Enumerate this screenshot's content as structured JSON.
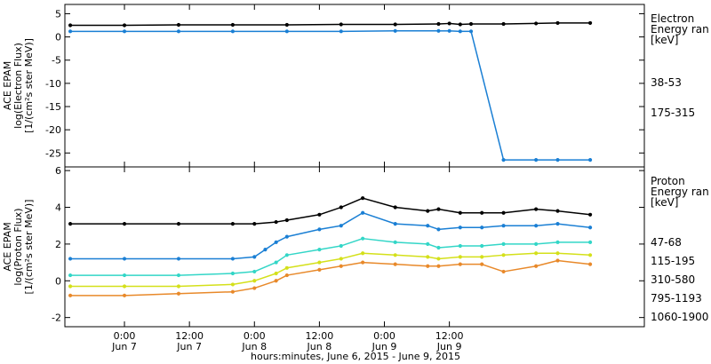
{
  "chart_data": [
    {
      "type": "scatter",
      "panel": "electron",
      "ylabel": [
        "ACE EPAM",
        "log(Electron Flux)",
        "[1/(cm²s ster MeV)]"
      ],
      "ylim": [
        -28,
        7
      ],
      "yticks": [
        5,
        0,
        -5,
        -10,
        -15,
        -20,
        -25
      ],
      "legend": {
        "title": [
          "Electron",
          "Energy ran",
          "[keV]"
        ],
        "placement": "right",
        "entries": [
          "38-53",
          "175-315"
        ]
      },
      "series": [
        {
          "name": "38-53",
          "color": "#000000",
          "x": [
            -10,
            0,
            10,
            20,
            30,
            40,
            50,
            58,
            60,
            62,
            64,
            70,
            76,
            80,
            86
          ],
          "y": [
            2.5,
            2.5,
            2.6,
            2.6,
            2.6,
            2.7,
            2.7,
            2.8,
            2.9,
            2.7,
            2.8,
            2.8,
            2.9,
            3.0,
            3.0
          ]
        },
        {
          "name": "175-315",
          "color": "#1a7fd4",
          "x": [
            -10,
            0,
            10,
            20,
            30,
            40,
            50,
            58,
            60,
            62,
            64,
            70,
            76,
            80,
            86
          ],
          "y": [
            1.2,
            1.2,
            1.2,
            1.2,
            1.2,
            1.2,
            1.3,
            1.3,
            1.3,
            1.2,
            1.2,
            -26.5,
            -26.5,
            -26.5,
            -26.5
          ]
        }
      ]
    },
    {
      "type": "scatter",
      "panel": "proton",
      "ylabel": [
        "ACE EPAM",
        "log(Proton Flux)",
        "[1/(cm²s ster MeV)]"
      ],
      "ylim": [
        -2.5,
        6.2
      ],
      "yticks": [
        6,
        4,
        2,
        0,
        -2
      ],
      "legend": {
        "title": [
          "Proton",
          "Energy ran",
          "[keV]"
        ],
        "placement": "right",
        "entries": [
          "47-68",
          "115-195",
          "310-580",
          "795-1193",
          "1060-1900"
        ]
      },
      "series": [
        {
          "name": "47-68",
          "color": "#000000",
          "x": [
            -10,
            0,
            10,
            20,
            24,
            28,
            30,
            36,
            40,
            44,
            50,
            56,
            58,
            62,
            66,
            70,
            76,
            80,
            86
          ],
          "y": [
            3.1,
            3.1,
            3.1,
            3.1,
            3.1,
            3.2,
            3.3,
            3.6,
            4.0,
            4.5,
            4.0,
            3.8,
            3.9,
            3.7,
            3.7,
            3.7,
            3.9,
            3.8,
            3.6
          ]
        },
        {
          "name": "115-195",
          "color": "#1a7fd4",
          "x": [
            -10,
            0,
            10,
            20,
            24,
            26,
            28,
            30,
            36,
            40,
            44,
            50,
            56,
            58,
            62,
            66,
            70,
            76,
            80,
            86
          ],
          "y": [
            1.2,
            1.2,
            1.2,
            1.2,
            1.3,
            1.7,
            2.1,
            2.4,
            2.8,
            3.0,
            3.7,
            3.1,
            3.0,
            2.8,
            2.9,
            2.9,
            3.0,
            3.0,
            3.1,
            2.9
          ]
        },
        {
          "name": "310-580",
          "color": "#33d6c7",
          "x": [
            -10,
            0,
            10,
            20,
            24,
            28,
            30,
            36,
            40,
            44,
            50,
            56,
            58,
            62,
            66,
            70,
            76,
            80,
            86
          ],
          "y": [
            0.3,
            0.3,
            0.3,
            0.4,
            0.5,
            1.0,
            1.4,
            1.7,
            1.9,
            2.3,
            2.1,
            2.0,
            1.8,
            1.9,
            1.9,
            2.0,
            2.0,
            2.1,
            2.1
          ]
        },
        {
          "name": "795-1193",
          "color": "#d4e01a",
          "x": [
            -10,
            0,
            10,
            20,
            24,
            28,
            30,
            36,
            40,
            44,
            50,
            56,
            58,
            62,
            66,
            70,
            76,
            80,
            86
          ],
          "y": [
            -0.3,
            -0.3,
            -0.3,
            -0.2,
            0.0,
            0.4,
            0.7,
            1.0,
            1.2,
            1.5,
            1.4,
            1.3,
            1.2,
            1.3,
            1.3,
            1.4,
            1.5,
            1.5,
            1.4
          ]
        },
        {
          "name": "1060-1900",
          "color": "#e8892a",
          "x": [
            -10,
            0,
            10,
            20,
            24,
            28,
            30,
            36,
            40,
            44,
            50,
            56,
            58,
            62,
            66,
            70,
            76,
            80,
            86
          ],
          "y": [
            -0.8,
            -0.8,
            -0.7,
            -0.6,
            -0.4,
            0.0,
            0.3,
            0.6,
            0.8,
            1.0,
            0.9,
            0.8,
            0.8,
            0.9,
            0.9,
            0.5,
            0.8,
            1.1,
            0.9
          ]
        }
      ]
    }
  ],
  "x_axis": {
    "xlim": [
      -11,
      96
    ],
    "ticks": [
      {
        "x": 0,
        "time": "0:00",
        "day": "Jun 7"
      },
      {
        "x": 12,
        "time": "12:00",
        "day": "Jun 7"
      },
      {
        "x": 24,
        "time": "0:00",
        "day": "Jun 8"
      },
      {
        "x": 36,
        "time": "12:00",
        "day": "Jun 8"
      },
      {
        "x": 48,
        "time": "0:00",
        "day": "Jun 9"
      },
      {
        "x": 60,
        "time": "12:00",
        "day": "Jun 9"
      }
    ],
    "label": "hours:minutes, June  6, 2015 - June  9, 2015"
  }
}
